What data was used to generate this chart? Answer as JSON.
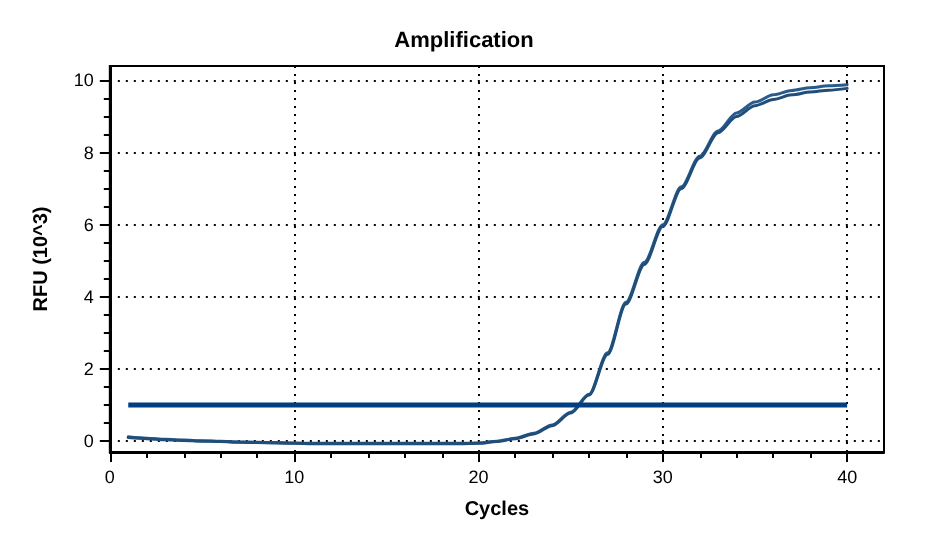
{
  "chart_data": {
    "type": "line",
    "title": "Amplification",
    "xlabel": "Cycles",
    "ylabel": "RFU (10^3)",
    "xlim": [
      0,
      42
    ],
    "xticks": [
      0,
      10,
      20,
      30,
      40
    ],
    "ylim": [
      -0.3,
      10.4
    ],
    "yticks": [
      0,
      2,
      4,
      6,
      8,
      10
    ],
    "grid": true,
    "marker": "none",
    "line_style": "solid",
    "x": [
      1,
      2,
      3,
      4,
      5,
      6,
      7,
      8,
      9,
      10,
      11,
      12,
      13,
      14,
      15,
      16,
      17,
      18,
      19,
      20,
      21,
      22,
      23,
      24,
      25,
      26,
      27,
      28,
      29,
      30,
      31,
      32,
      33,
      34,
      35,
      36,
      37,
      38,
      39,
      40
    ],
    "series": [
      {
        "color": "#2a5a8c",
        "values": [
          0.12,
          0.08,
          0.05,
          0.03,
          0.01,
          0,
          -0.02,
          -0.03,
          -0.04,
          -0.05,
          -0.06,
          -0.06,
          -0.06,
          -0.06,
          -0.06,
          -0.06,
          -0.06,
          -0.06,
          -0.06,
          -0.05,
          0,
          0.08,
          0.22,
          0.45,
          0.8,
          1.3,
          2.45,
          3.85,
          4.96,
          6,
          7.05,
          7.9,
          8.6,
          9.1,
          9.4,
          9.6,
          9.72,
          9.8,
          9.85,
          9.88
        ]
      },
      {
        "color": "#1f4e7a",
        "values": [
          0.1,
          0.07,
          0.04,
          0.02,
          0,
          -0.01,
          -0.03,
          -0.04,
          -0.05,
          -0.06,
          -0.07,
          -0.07,
          -0.07,
          -0.07,
          -0.07,
          -0.07,
          -0.07,
          -0.07,
          -0.07,
          -0.06,
          -0.01,
          0.07,
          0.2,
          0.43,
          0.78,
          1.28,
          2.4,
          3.8,
          4.9,
          5.95,
          7,
          7.85,
          8.55,
          9.0,
          9.3,
          9.47,
          9.6,
          9.68,
          9.73,
          9.78
        ]
      }
    ],
    "ref_lines": [
      {
        "axis": "y",
        "value": 1,
        "color": "#003f7f",
        "line_style": "solid"
      }
    ]
  }
}
